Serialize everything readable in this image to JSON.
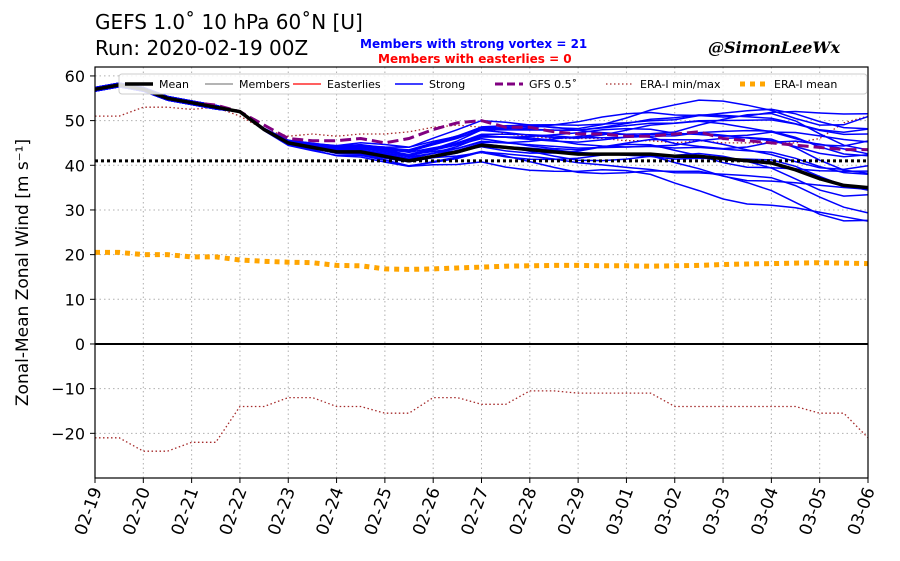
{
  "header": {
    "title_line1": "GEFS 1.0˚  10 hPa 60˚N [U]",
    "title_line2": "Run: 2020-02-19 00Z",
    "strong_vortex_text": "Members with strong vortex = 21",
    "easterlies_text": "Members with easterlies = 0",
    "credit": "@SimonLeeWx"
  },
  "chart_data": {
    "type": "line",
    "ylabel": "Zonal-Mean Zonal Wind [m s⁻¹]",
    "xlabel": "",
    "ylim": [
      -30,
      62
    ],
    "xlim": [
      0,
      16
    ],
    "grid": true,
    "legend_position": "top",
    "x_tick_labels": [
      "02-19",
      "02-20",
      "02-21",
      "02-22",
      "02-23",
      "02-24",
      "02-25",
      "02-26",
      "02-27",
      "02-28",
      "02-29",
      "03-01",
      "03-02",
      "03-03",
      "03-04",
      "03-05",
      "03-06"
    ],
    "y_ticks": [
      -20,
      -10,
      0,
      10,
      20,
      30,
      40,
      50,
      60
    ],
    "zero_line": 0,
    "threshold_line": 41,
    "x_days": [
      0,
      0.5,
      1,
      1.5,
      2,
      2.5,
      3,
      3.5,
      4,
      4.5,
      5,
      5.5,
      6,
      6.5,
      7,
      7.5,
      8,
      8.5,
      9,
      9.5,
      10,
      10.5,
      11,
      11.5,
      12,
      12.5,
      13,
      13.5,
      14,
      14.5,
      15,
      15.5,
      16
    ],
    "series": [
      {
        "name": "Mean",
        "color": "#000000",
        "style": "solid",
        "width": 3.5,
        "values": [
          57,
          58,
          57,
          55,
          54,
          53,
          52,
          48,
          45,
          44,
          43,
          43,
          42,
          41,
          42,
          43,
          44.5,
          44,
          43.5,
          43,
          42.5,
          42.5,
          42.5,
          42.5,
          42,
          42,
          41.5,
          41,
          40.5,
          39,
          37,
          35.5,
          35
        ]
      },
      {
        "name": "Members",
        "color": "#888888",
        "style": "solid",
        "width": 1.2,
        "values": []
      },
      {
        "name": "Easterlies",
        "color": "#ff0000",
        "style": "solid",
        "width": 1.2,
        "values": []
      },
      {
        "name": "Strong",
        "color": "#0000ff",
        "style": "solid",
        "width": 1.5,
        "values": []
      },
      {
        "name": "GFS 0.5˚",
        "color": "#800080",
        "style": "dashed",
        "width": 3,
        "values": [
          57,
          58,
          57,
          55,
          54,
          53.5,
          52,
          49,
          46,
          45.5,
          45.5,
          46,
          45,
          46,
          48,
          49.5,
          50,
          48.5,
          48.5,
          47.5,
          47,
          47,
          46.5,
          46.5,
          47,
          47.5,
          46,
          45.5,
          45,
          44.5,
          44,
          43.5,
          43.5
        ]
      },
      {
        "name": "ERA-I min/max",
        "color": "#a52a2a",
        "style": "dotted",
        "width": 1.3,
        "values": []
      },
      {
        "name": "ERA-I mean",
        "color": "#ffa500",
        "style": "dotted-thick",
        "width": 5,
        "values": [
          20.5,
          20.5,
          20,
          20,
          19.5,
          19.5,
          18.8,
          18.5,
          18.3,
          18.2,
          17.6,
          17.5,
          16.8,
          16.7,
          16.8,
          17,
          17.2,
          17.4,
          17.5,
          17.6,
          17.6,
          17.5,
          17.5,
          17.4,
          17.5,
          17.6,
          17.8,
          17.9,
          18,
          18.1,
          18.2,
          18.1,
          18
        ]
      }
    ],
    "era_max": [
      51,
      51,
      53,
      53,
      52.5,
      53,
      51,
      48,
      46.5,
      47,
      46.5,
      47,
      47,
      47.5,
      48.5,
      49,
      48.5,
      47,
      46.5,
      46,
      46,
      46,
      45.5,
      45.5,
      45,
      45.5,
      45,
      45,
      45,
      45,
      46,
      49.5,
      51
    ],
    "era_min": [
      -21,
      -21,
      -24,
      -24,
      -22,
      -22,
      -14,
      -14,
      -12,
      -12,
      -14,
      -14,
      -15.5,
      -15.5,
      -12,
      -12,
      -13.5,
      -13.5,
      -10.5,
      -10.5,
      -11,
      -11,
      -11,
      -11,
      -14,
      -14,
      -14,
      -14,
      -14,
      -14,
      -15.5,
      -15.5,
      -21
    ],
    "strong_members": {
      "count": 21,
      "shared_prefix": [
        57,
        58,
        57,
        55,
        54,
        53
      ],
      "tail_start_x": 3,
      "tail_start": 52,
      "endpoints": [
        25,
        28,
        30,
        32,
        34,
        35,
        36,
        38,
        39,
        40,
        41,
        42,
        43,
        44,
        45,
        46,
        47,
        48,
        49,
        50,
        51
      ],
      "wiggle": [
        3,
        -2,
        1,
        -3,
        2,
        -1,
        3,
        0,
        -2,
        2,
        -3,
        1,
        -1,
        2,
        -2,
        3,
        0,
        1,
        -1,
        2,
        -3
      ]
    }
  }
}
